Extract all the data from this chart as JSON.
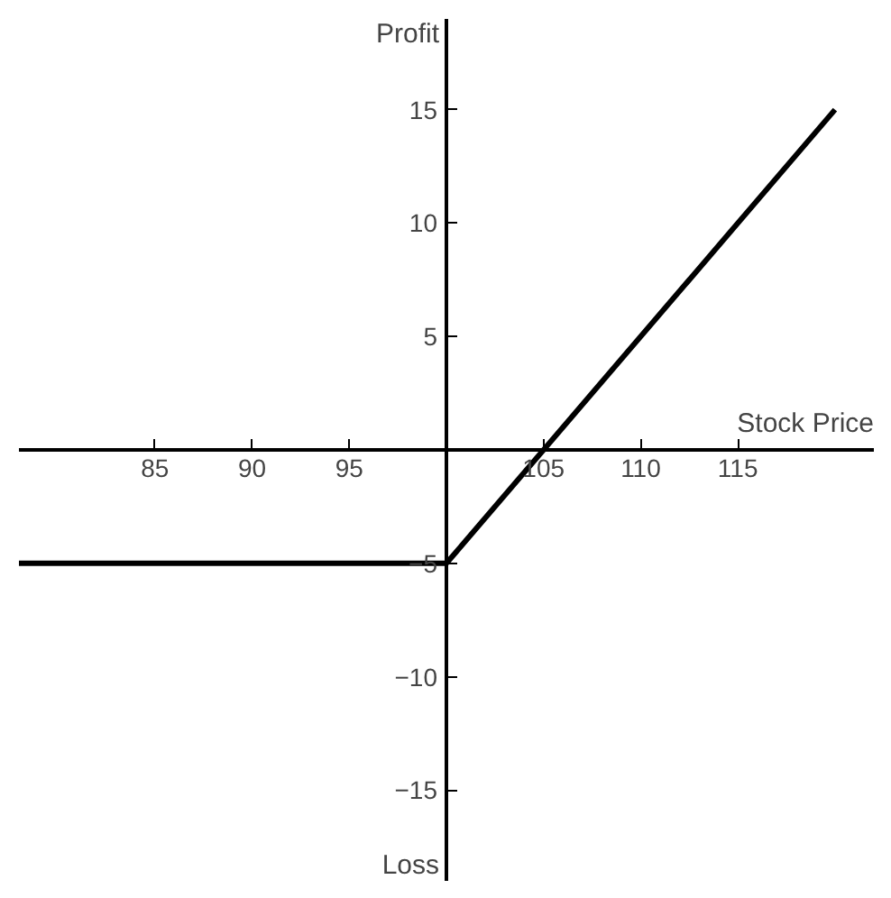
{
  "chart_data": {
    "type": "line",
    "xlabel": "Stock Price",
    "ylabel": "Profit",
    "annotations": [
      "Loss"
    ],
    "x": [
      78,
      100,
      120
    ],
    "series": [
      {
        "color": "#000000",
        "values": [
          -5,
          -5,
          15
        ]
      }
    ],
    "xlim": [
      78,
      122
    ],
    "ylim": [
      -19,
      19
    ],
    "xticks": [
      85,
      90,
      95,
      105,
      110,
      115
    ],
    "yticks": [
      -15,
      -10,
      -5,
      5,
      10,
      15
    ],
    "marker": "none",
    "line_style": "solid"
  }
}
